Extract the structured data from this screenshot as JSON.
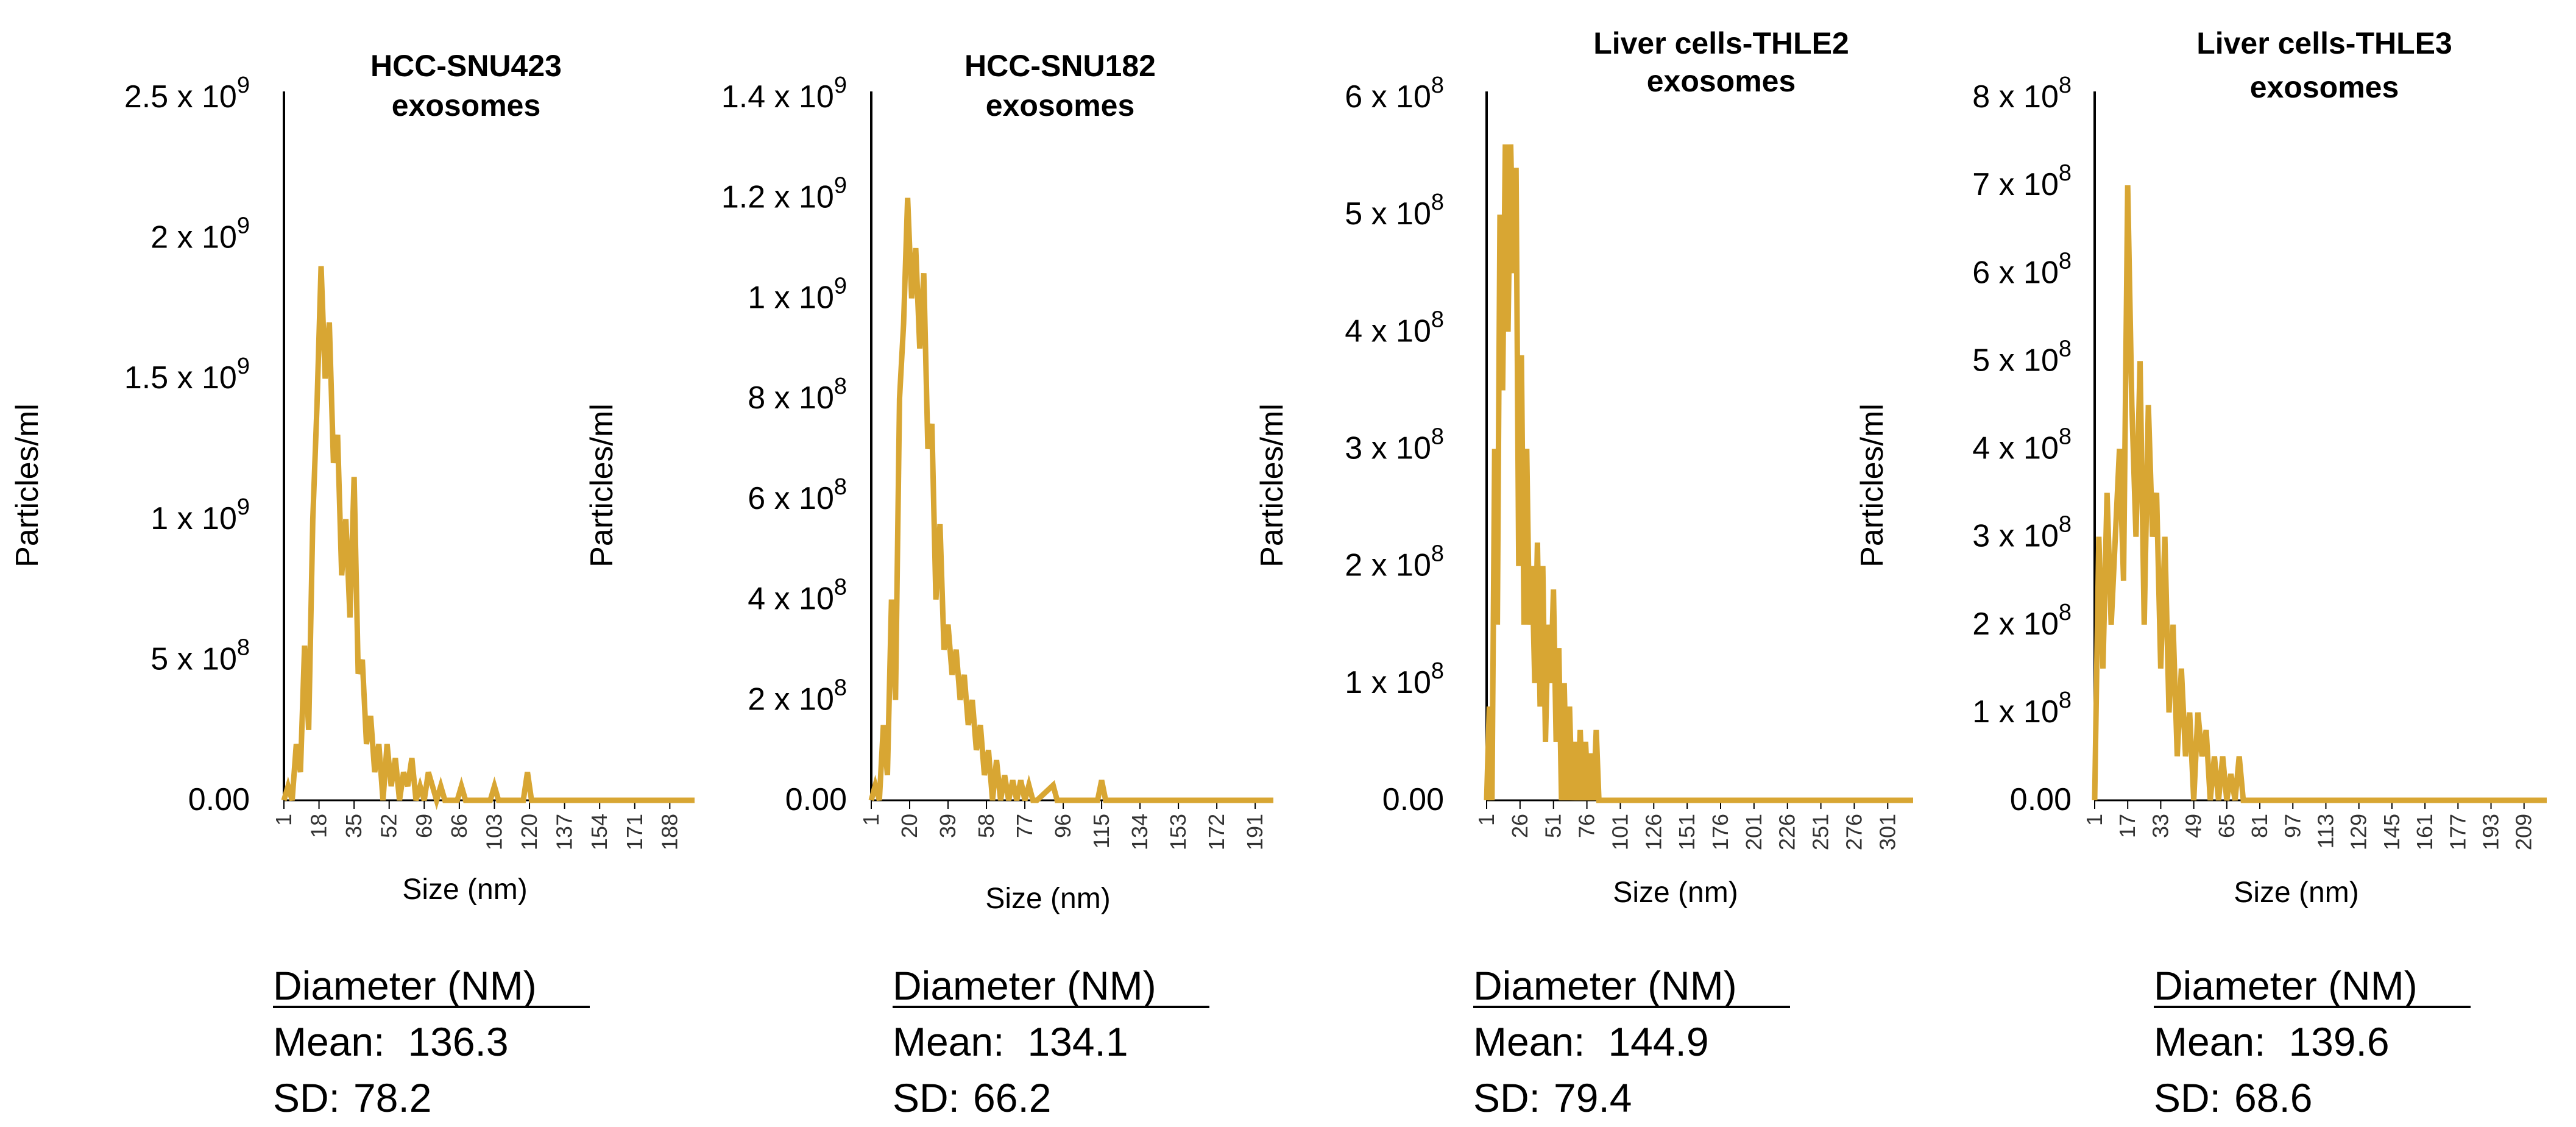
{
  "figure": {
    "line_color": "#d8a633",
    "axis_color": "#000000"
  },
  "chart_data": [
    {
      "type": "line",
      "title": [
        "HCC-SNU423",
        "exosomes"
      ],
      "xlabel": "Size (nm)",
      "ylabel": "Particles/ml",
      "ylim": [
        0,
        2500000000
      ],
      "xlim": [
        1,
        200
      ],
      "y_ticks": [
        {
          "label_main": "0.00",
          "exp": "",
          "value": 0
        },
        {
          "label_main": "5 x 10",
          "exp": "8",
          "value": 500000000
        },
        {
          "label_main": "1 x 10",
          "exp": "9",
          "value": 1000000000
        },
        {
          "label_main": "1.5 x 10",
          "exp": "9",
          "value": 1500000000
        },
        {
          "label_main": "2 x 10",
          "exp": "9",
          "value": 2000000000
        },
        {
          "label_main": "2.5 x 10",
          "exp": "9",
          "value": 2500000000
        }
      ],
      "x_ticks": [
        "1",
        "18",
        "35",
        "52",
        "69",
        "86",
        "103",
        "120",
        "137",
        "154",
        "171",
        "188"
      ],
      "x_tick_values": [
        1,
        18,
        35,
        52,
        69,
        86,
        103,
        120,
        137,
        154,
        171,
        188
      ],
      "series": [
        {
          "name": "HCC-SNU423",
          "x": [
            1,
            3,
            5,
            7,
            9,
            11,
            13,
            15,
            17,
            19,
            21,
            23,
            25,
            27,
            29,
            31,
            33,
            35,
            37,
            39,
            41,
            43,
            45,
            47,
            49,
            51,
            53,
            55,
            57,
            59,
            61,
            63,
            65,
            67,
            69,
            71,
            75,
            77,
            79,
            85,
            87,
            89,
            101,
            103,
            105,
            117,
            119,
            121,
            123,
            200
          ],
          "values": [
            0,
            50000000,
            0,
            200000000,
            100000000,
            550000000,
            250000000,
            1000000000,
            1400000000,
            1900000000,
            1500000000,
            1700000000,
            1200000000,
            1300000000,
            800000000,
            1000000000,
            650000000,
            1150000000,
            450000000,
            500000000,
            200000000,
            300000000,
            100000000,
            200000000,
            0,
            200000000,
            50000000,
            150000000,
            0,
            100000000,
            50000000,
            150000000,
            0,
            50000000,
            0,
            100000000,
            0,
            50000000,
            0,
            0,
            50000000,
            0,
            0,
            50000000,
            0,
            0,
            100000000,
            0,
            0,
            0
          ]
        }
      ],
      "stats": {
        "heading": "Diameter (NM)",
        "mean_label": "Mean:",
        "mean": "136.3",
        "sd_label": "SD:",
        "sd": "78.2"
      }
    },
    {
      "type": "line",
      "title": [
        "HCC-SNU182",
        "exosomes"
      ],
      "xlabel": "Size (nm)",
      "ylabel": "Particles/ml",
      "ylim": [
        0,
        1400000000
      ],
      "xlim": [
        1,
        200
      ],
      "y_ticks": [
        {
          "label_main": "0.00",
          "exp": "",
          "value": 0
        },
        {
          "label_main": "2 x 10",
          "exp": "8",
          "value": 200000000
        },
        {
          "label_main": "4 x 10",
          "exp": "8",
          "value": 400000000
        },
        {
          "label_main": "6 x 10",
          "exp": "8",
          "value": 600000000
        },
        {
          "label_main": "8 x 10",
          "exp": "8",
          "value": 800000000
        },
        {
          "label_main": "1 x 10",
          "exp": "9",
          "value": 1000000000
        },
        {
          "label_main": "1.2 x 10",
          "exp": "9",
          "value": 1200000000
        },
        {
          "label_main": "1.4 x 10",
          "exp": "9",
          "value": 1400000000
        }
      ],
      "x_ticks": [
        "1",
        "20",
        "39",
        "58",
        "77",
        "96",
        "115",
        "134",
        "153",
        "172",
        "191"
      ],
      "x_tick_values": [
        1,
        20,
        39,
        58,
        77,
        96,
        115,
        134,
        153,
        172,
        191
      ],
      "series": [
        {
          "name": "HCC-SNU182",
          "x": [
            1,
            3,
            5,
            7,
            9,
            11,
            13,
            15,
            17,
            19,
            21,
            23,
            25,
            27,
            29,
            31,
            33,
            35,
            37,
            39,
            41,
            43,
            45,
            47,
            49,
            51,
            53,
            55,
            57,
            59,
            61,
            63,
            65,
            67,
            69,
            71,
            73,
            75,
            77,
            79,
            81,
            83,
            91,
            93,
            95,
            113,
            115,
            117,
            119,
            200
          ],
          "values": [
            0,
            30000000,
            0,
            150000000,
            50000000,
            400000000,
            200000000,
            800000000,
            950000000,
            1200000000,
            1000000000,
            1100000000,
            900000000,
            1050000000,
            700000000,
            750000000,
            400000000,
            550000000,
            300000000,
            350000000,
            250000000,
            300000000,
            200000000,
            250000000,
            150000000,
            200000000,
            100000000,
            150000000,
            50000000,
            100000000,
            0,
            80000000,
            0,
            50000000,
            0,
            40000000,
            0,
            40000000,
            0,
            30000000,
            0,
            0,
            30000000,
            0,
            0,
            0,
            40000000,
            0,
            0,
            0
          ]
        }
      ],
      "stats": {
        "heading": "Diameter (NM)",
        "mean_label": "Mean:",
        "mean": "134.1",
        "sd_label": "SD:",
        "sd": "66.2"
      }
    },
    {
      "type": "line",
      "title": [
        "Liver cells-THLE2",
        "exosomes"
      ],
      "xlabel": "Size (nm)",
      "ylabel": "Particles/ml",
      "ylim": [
        0,
        600000000
      ],
      "xlim": [
        1,
        320
      ],
      "y_ticks": [
        {
          "label_main": "0.00",
          "exp": "",
          "value": 0
        },
        {
          "label_main": "1 x 10",
          "exp": "8",
          "value": 100000000
        },
        {
          "label_main": "2 x 10",
          "exp": "8",
          "value": 200000000
        },
        {
          "label_main": "3 x 10",
          "exp": "8",
          "value": 300000000
        },
        {
          "label_main": "4 x 10",
          "exp": "8",
          "value": 400000000
        },
        {
          "label_main": "5 x 10",
          "exp": "8",
          "value": 500000000
        },
        {
          "label_main": "6 x 10",
          "exp": "8",
          "value": 600000000
        }
      ],
      "x_ticks": [
        "1",
        "26",
        "51",
        "76",
        "101",
        "126",
        "151",
        "176",
        "201",
        "226",
        "251",
        "276",
        "301"
      ],
      "x_tick_values": [
        1,
        26,
        51,
        76,
        101,
        126,
        151,
        176,
        201,
        226,
        251,
        276,
        301
      ],
      "series": [
        {
          "name": "Liver cells-THLE2",
          "x": [
            1,
            3,
            5,
            7,
            9,
            11,
            13,
            15,
            17,
            19,
            21,
            23,
            25,
            27,
            29,
            31,
            33,
            35,
            37,
            39,
            41,
            43,
            45,
            47,
            49,
            51,
            53,
            55,
            57,
            59,
            61,
            63,
            65,
            67,
            69,
            71,
            73,
            75,
            77,
            79,
            81,
            83,
            85,
            87,
            320
          ],
          "values": [
            0,
            80000000,
            0,
            300000000,
            150000000,
            500000000,
            350000000,
            560000000,
            400000000,
            560000000,
            450000000,
            540000000,
            200000000,
            380000000,
            150000000,
            300000000,
            150000000,
            200000000,
            100000000,
            220000000,
            80000000,
            200000000,
            50000000,
            150000000,
            100000000,
            180000000,
            50000000,
            130000000,
            0,
            100000000,
            0,
            80000000,
            0,
            50000000,
            0,
            60000000,
            0,
            50000000,
            0,
            40000000,
            0,
            60000000,
            0,
            0,
            0
          ]
        }
      ],
      "stats": {
        "heading": "Diameter (NM)",
        "mean_label": "Mean:",
        "mean": "144.9",
        "sd_label": "SD:",
        "sd": "79.4"
      }
    },
    {
      "type": "line",
      "title": [
        "Liver cells-THLE3",
        "exosomes"
      ],
      "xlabel": "Size (nm)",
      "ylabel": "Particles/ml",
      "ylim": [
        0,
        800000000
      ],
      "xlim": [
        1,
        220
      ],
      "y_ticks": [
        {
          "label_main": "0.00",
          "exp": "",
          "value": 0
        },
        {
          "label_main": "1 x 10",
          "exp": "8",
          "value": 100000000
        },
        {
          "label_main": "2 x 10",
          "exp": "8",
          "value": 200000000
        },
        {
          "label_main": "3 x 10",
          "exp": "8",
          "value": 300000000
        },
        {
          "label_main": "4 x 10",
          "exp": "8",
          "value": 400000000
        },
        {
          "label_main": "5 x 10",
          "exp": "8",
          "value": 500000000
        },
        {
          "label_main": "6 x 10",
          "exp": "8",
          "value": 600000000
        },
        {
          "label_main": "7 x 10",
          "exp": "8",
          "value": 700000000
        },
        {
          "label_main": "8 x 10",
          "exp": "8",
          "value": 800000000
        }
      ],
      "x_ticks": [
        "1",
        "17",
        "33",
        "49",
        "65",
        "81",
        "97",
        "113",
        "129",
        "145",
        "161",
        "177",
        "193",
        "209"
      ],
      "x_tick_values": [
        1,
        17,
        33,
        49,
        65,
        81,
        97,
        113,
        129,
        145,
        161,
        177,
        193,
        209
      ],
      "series": [
        {
          "name": "Liver cells-THLE3",
          "x": [
            1,
            3,
            5,
            7,
            9,
            11,
            13,
            15,
            17,
            19,
            21,
            23,
            25,
            27,
            29,
            31,
            33,
            35,
            37,
            39,
            41,
            43,
            45,
            47,
            49,
            51,
            53,
            55,
            57,
            59,
            61,
            63,
            65,
            67,
            69,
            71,
            73,
            75,
            220
          ],
          "values": [
            0,
            300000000,
            150000000,
            350000000,
            200000000,
            300000000,
            400000000,
            250000000,
            700000000,
            450000000,
            300000000,
            500000000,
            200000000,
            450000000,
            300000000,
            350000000,
            150000000,
            300000000,
            100000000,
            200000000,
            50000000,
            150000000,
            50000000,
            100000000,
            0,
            100000000,
            50000000,
            80000000,
            0,
            50000000,
            0,
            50000000,
            0,
            30000000,
            0,
            50000000,
            0,
            0,
            0
          ]
        }
      ],
      "stats": {
        "heading": "Diameter (NM)",
        "mean_label": "Mean:",
        "mean": "139.6",
        "sd_label": "SD:",
        "sd": "68.6"
      }
    }
  ]
}
